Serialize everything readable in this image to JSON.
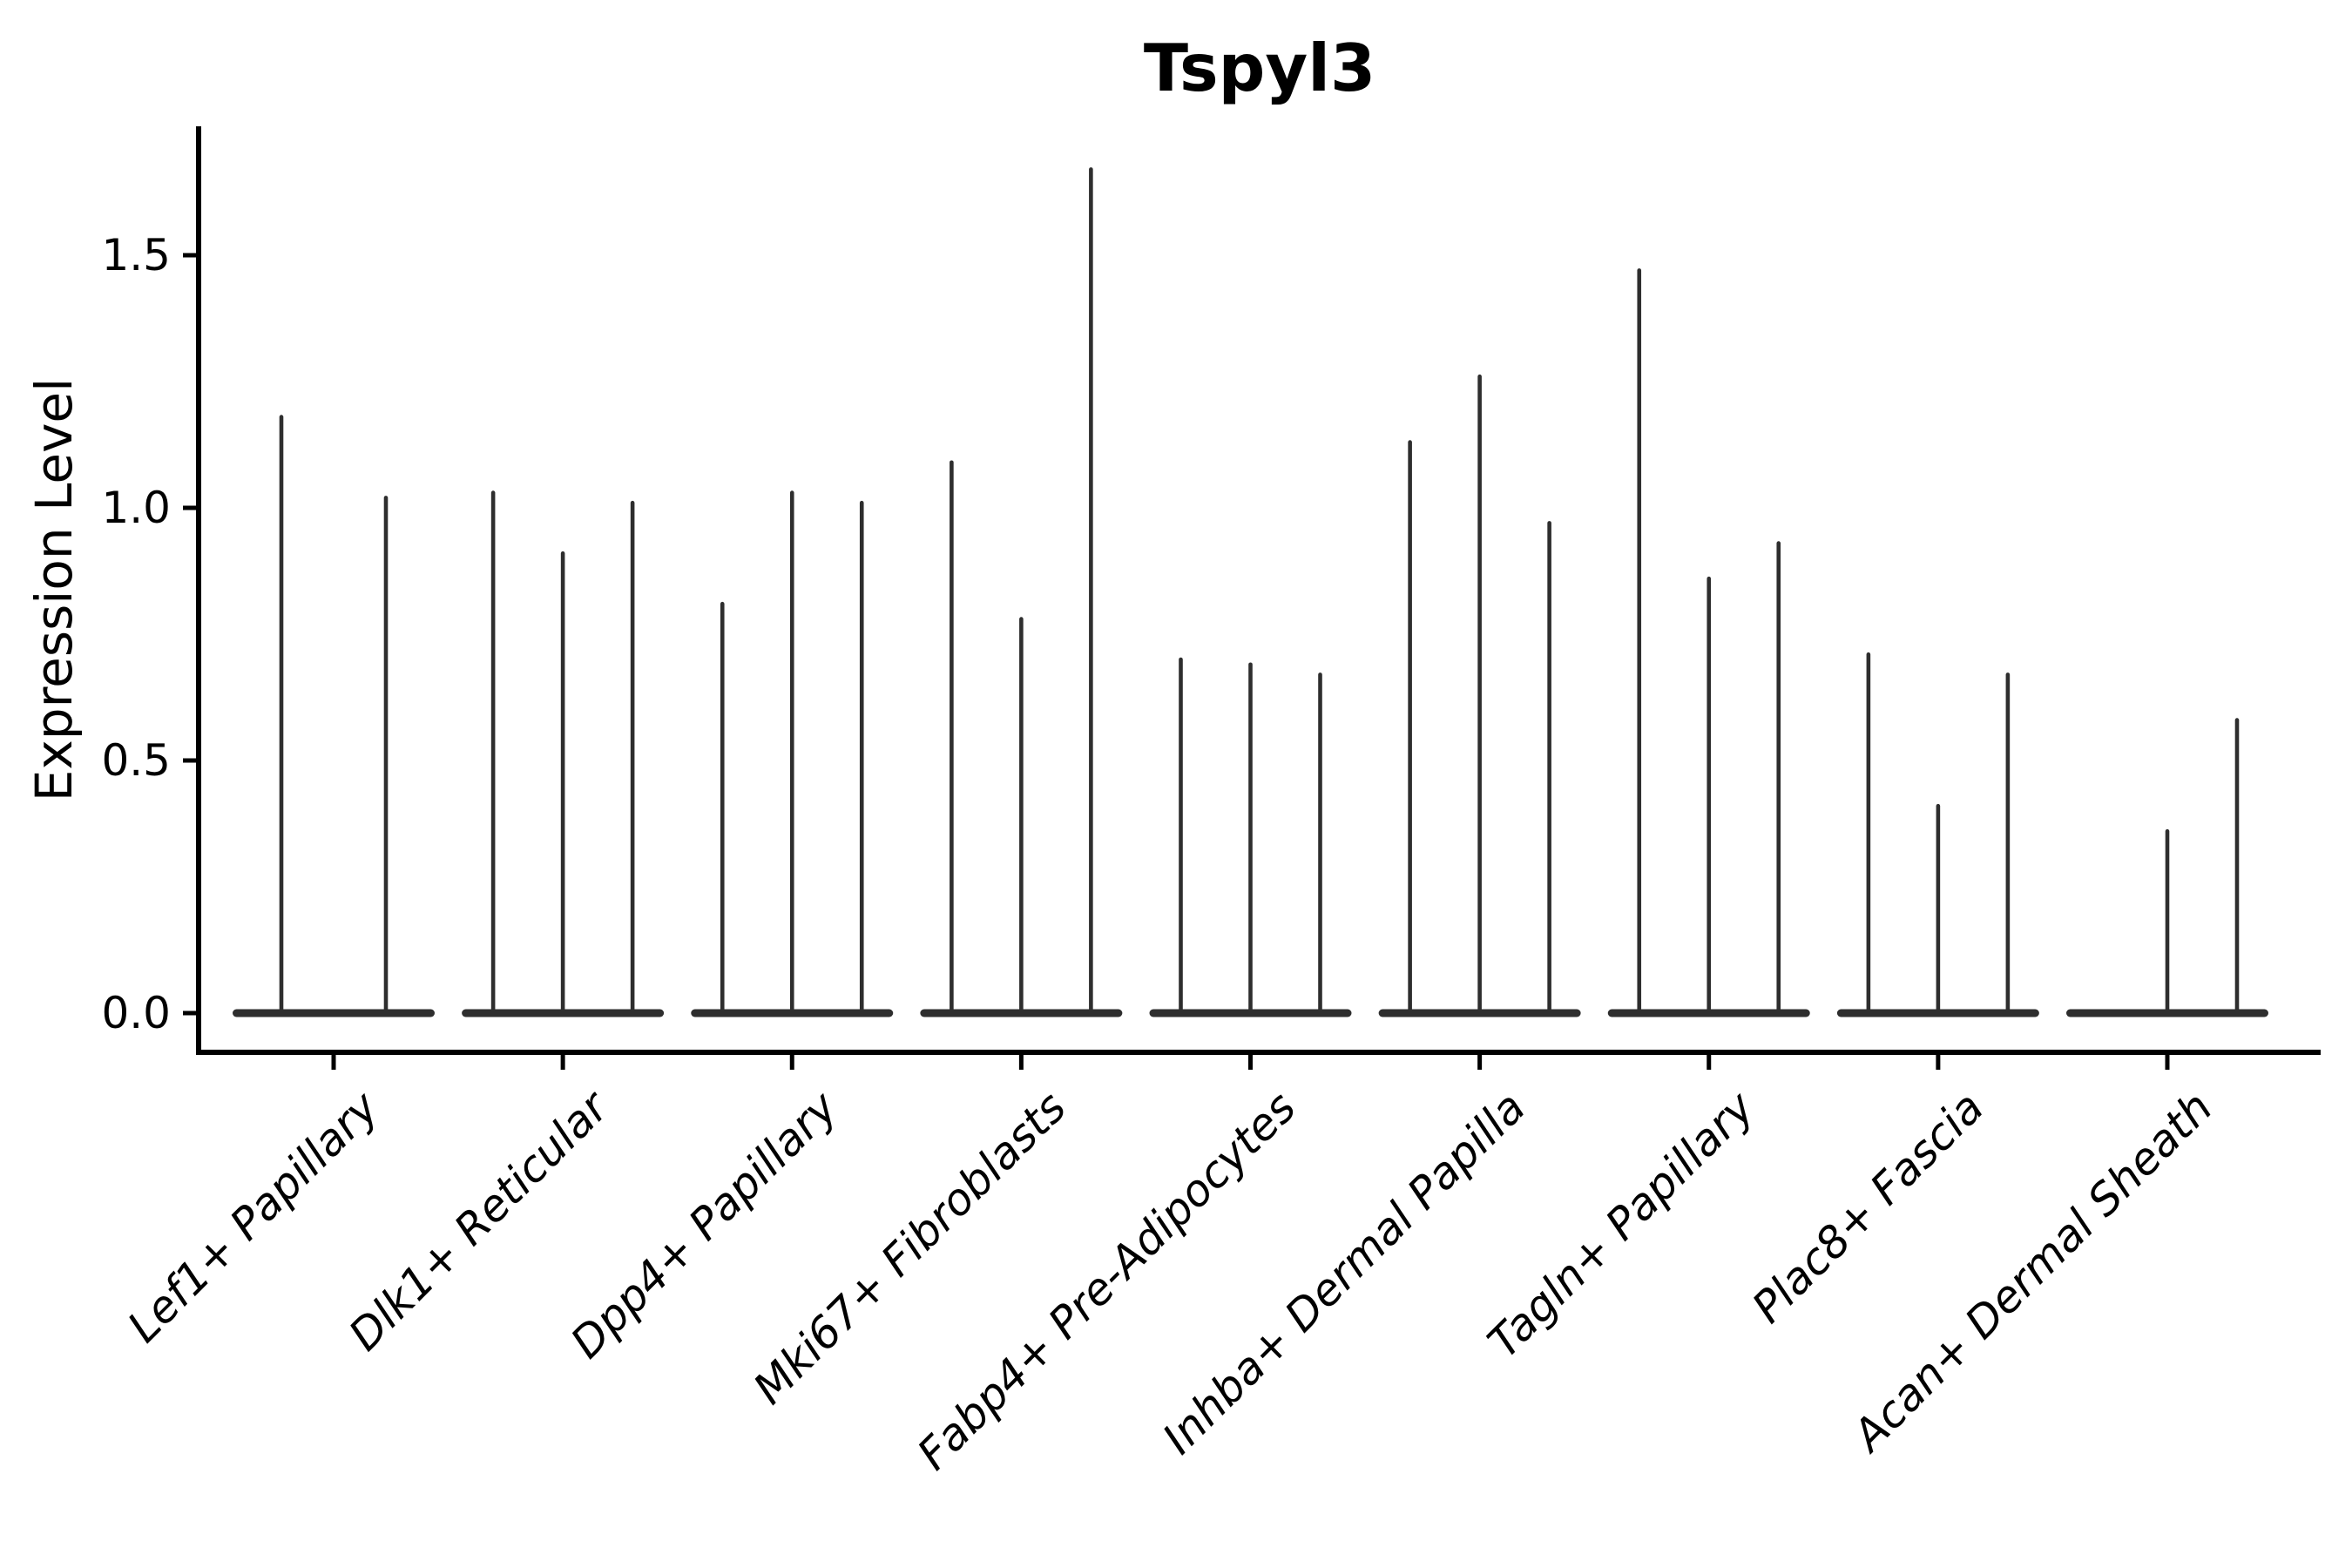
{
  "title": "Tspyl3",
  "axes": {
    "ylabel": "Expression Level",
    "xlabel": "",
    "ytick_labels": [
      "0.0",
      "0.5",
      "1.0",
      "1.5"
    ]
  },
  "colors": {
    "violin": "#2e2e2e",
    "axis": "#000000",
    "text": "#000000",
    "background": "#ffffff"
  },
  "chart_data": {
    "type": "violin",
    "title": "Tspyl3",
    "ylabel": "Expression Level",
    "xlabel": "",
    "yticks": [
      0.0,
      0.5,
      1.0,
      1.5
    ],
    "ylim": [
      -0.08,
      1.75
    ],
    "grid": false,
    "legend": "none",
    "description": "Very thin violins (spikes) rising from flat zero-density bodies; each category holds 2-3 violins",
    "categories": [
      "Lef1+ Papillary",
      "Dlk1+ Reticular",
      "Dpp4+ Papillary",
      "Mki67+ Fibroblasts",
      "Fabp4+ Pre-Adipocytes",
      "Inhba+ Dermal Papilla",
      "Tagln+ Papillary",
      "Plac8+ Fascia",
      "Acan+ Dermal Sheath"
    ],
    "groups": [
      {
        "category": "Lef1+ Papillary",
        "violin_maxima": [
          1.18,
          1.02
        ]
      },
      {
        "category": "Dlk1+ Reticular",
        "violin_maxima": [
          1.03,
          0.91,
          1.01
        ]
      },
      {
        "category": "Dpp4+ Papillary",
        "violin_maxima": [
          0.81,
          1.03,
          1.01
        ]
      },
      {
        "category": "Mki67+ Fibroblasts",
        "violin_maxima": [
          1.09,
          0.78,
          1.67
        ]
      },
      {
        "category": "Fabp4+ Pre-Adipocytes",
        "violin_maxima": [
          0.7,
          0.69,
          0.67
        ]
      },
      {
        "category": "Inhba+ Dermal Papilla",
        "violin_maxima": [
          1.13,
          1.26,
          0.97
        ]
      },
      {
        "category": "Tagln+ Papillary",
        "violin_maxima": [
          1.47,
          0.86,
          0.93
        ]
      },
      {
        "category": "Plac8+ Fascia",
        "violin_maxima": [
          0.71,
          0.41,
          0.67
        ]
      },
      {
        "category": "Acan+ Dermal Sheath",
        "violin_maxima": [
          0.0,
          0.36,
          0.58
        ]
      }
    ]
  }
}
